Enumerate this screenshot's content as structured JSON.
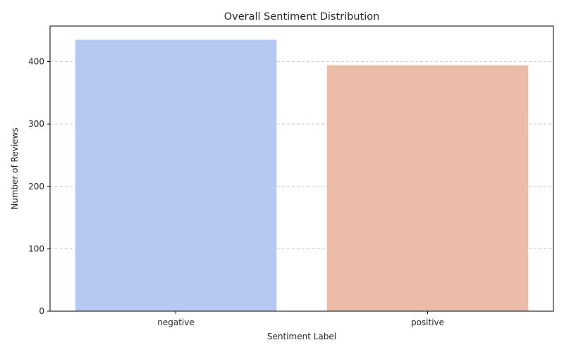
{
  "chart_data": {
    "type": "bar",
    "title": "Overall Sentiment Distribution",
    "xlabel": "Sentiment Label",
    "ylabel": "Number of Reviews",
    "categories": [
      "negative",
      "positive"
    ],
    "values": [
      435,
      394
    ],
    "colors": [
      "#b5c9f2",
      "#ebbca7"
    ],
    "ylim": [
      0,
      457
    ],
    "yticks": [
      0,
      100,
      200,
      300,
      400
    ],
    "grid": "y, dashed",
    "legend": "none"
  }
}
